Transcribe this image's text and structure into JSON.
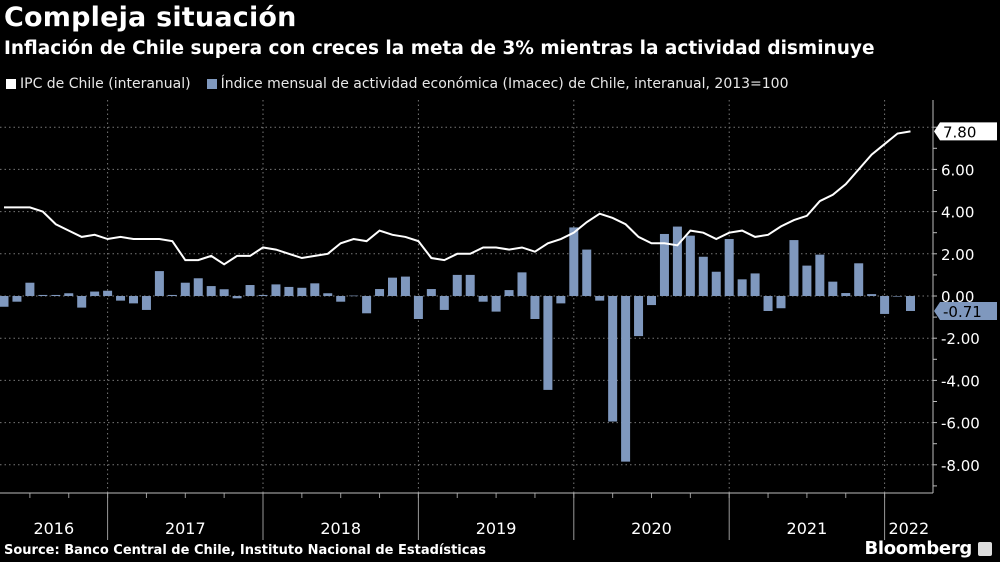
{
  "header": {
    "title": "Compleja situación",
    "subtitle": "Inflación de Chile supera con creces la meta de 3% mientras la actividad disminuye"
  },
  "footer": {
    "source": "Source: Banco Central de Chile, Instituto Nacional de Estadísticas",
    "brand": "Bloomberg"
  },
  "colors": {
    "background": "#000000",
    "line": "#ffffff",
    "bars": "#7f98be"
  },
  "chart_data": {
    "type": "bar+line",
    "legend_position": "top-left",
    "grid": true,
    "x_start": "2016-05",
    "x_end": "2022-03",
    "x_tick_labels": [
      "2016",
      "2017",
      "2018",
      "2019",
      "2020",
      "2021",
      "2022"
    ],
    "y_axis_side": "right",
    "ylim": [
      -9,
      9
    ],
    "y_ticks": [
      -8,
      -6,
      -4,
      -2,
      0,
      2,
      4,
      6
    ],
    "y_tick_labels": [
      "-8.00",
      "-6.00",
      "-4.00",
      "-2.00",
      "0.00",
      "2.00",
      "4.00",
      "6.00"
    ],
    "series": [
      {
        "name": "IPC de Chile (interanual)",
        "type": "line",
        "last_value_label": "7.80",
        "values": [
          4.2,
          4.2,
          4.2,
          4.0,
          3.4,
          3.1,
          2.8,
          2.9,
          2.7,
          2.8,
          2.7,
          2.7,
          2.7,
          2.6,
          1.7,
          1.7,
          1.9,
          1.5,
          1.9,
          1.9,
          2.3,
          2.2,
          2.0,
          1.8,
          1.9,
          2.0,
          2.5,
          2.7,
          2.6,
          3.1,
          2.9,
          2.8,
          2.6,
          1.8,
          1.7,
          2.0,
          2.0,
          2.3,
          2.3,
          2.2,
          2.3,
          2.1,
          2.5,
          2.7,
          3.0,
          3.5,
          3.9,
          3.7,
          3.4,
          2.8,
          2.5,
          2.5,
          2.4,
          3.1,
          3.0,
          2.7,
          3.0,
          3.1,
          2.8,
          2.9,
          3.3,
          3.6,
          3.8,
          4.5,
          4.8,
          5.3,
          6.0,
          6.7,
          7.2,
          7.7,
          7.8
        ]
      },
      {
        "name": "Índice mensual de actividad económica (Imacec) de Chile, interanual, 2013=100",
        "type": "bar",
        "last_value_label": "-0.71",
        "values": [
          -0.51,
          -0.27,
          0.63,
          0.05,
          0.05,
          0.13,
          -0.55,
          0.21,
          0.25,
          -0.22,
          -0.35,
          -0.66,
          1.18,
          0.05,
          0.63,
          0.84,
          0.47,
          0.32,
          -0.11,
          0.52,
          0.05,
          0.55,
          0.43,
          0.39,
          0.6,
          0.13,
          -0.27,
          0.02,
          -0.82,
          0.33,
          0.87,
          0.92,
          -1.09,
          0.33,
          -0.66,
          1.0,
          1.0,
          -0.27,
          -0.74,
          0.28,
          1.12,
          -1.09,
          -4.45,
          -0.35,
          3.25,
          2.2,
          -0.22,
          -5.95,
          -7.85,
          -1.9,
          -0.43,
          2.94,
          3.29,
          2.86,
          1.86,
          1.15,
          2.7,
          0.79,
          1.07,
          -0.71,
          -0.58,
          2.65,
          1.44,
          1.96,
          0.68,
          0.14,
          1.55,
          0.09,
          -0.85,
          0.0,
          -0.71
        ]
      }
    ]
  }
}
